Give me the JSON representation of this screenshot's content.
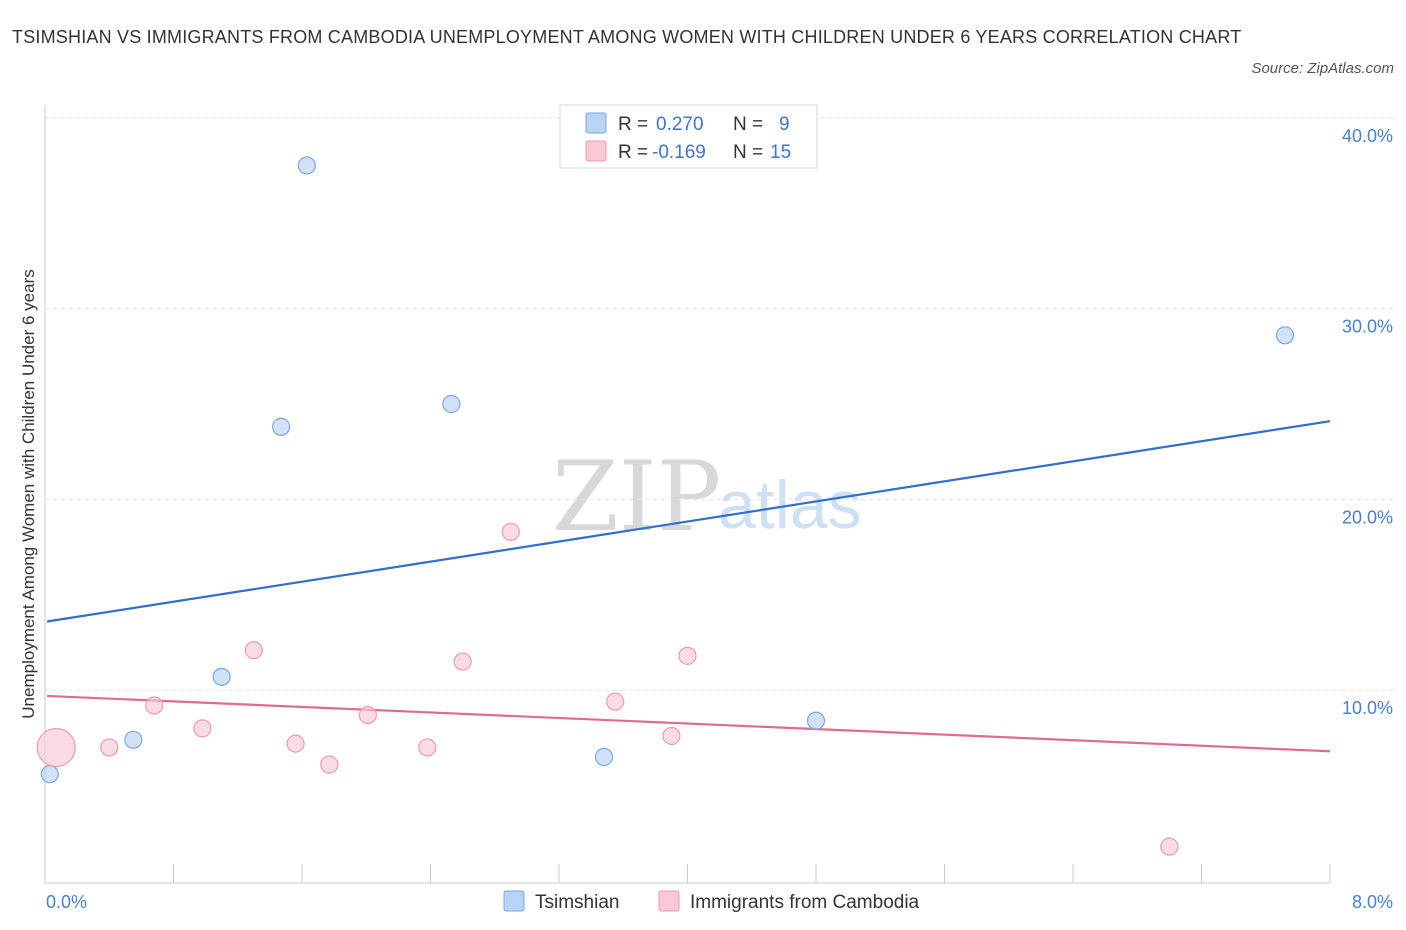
{
  "header": {
    "title": "TSIMSHIAN VS IMMIGRANTS FROM CAMBODIA UNEMPLOYMENT AMONG WOMEN WITH CHILDREN UNDER 6 YEARS CORRELATION CHART",
    "source": "Source: ZipAtlas.com"
  },
  "watermark": {
    "zip": "ZIP",
    "atlas": "atlas"
  },
  "colors": {
    "tsimshian_fill": "#b8d3f5",
    "tsimshian_stroke": "#7aa8e0",
    "tsimshian_line": "#2f6fcf",
    "cambodia_fill": "#f9c9d6",
    "cambodia_stroke": "#ec9ab2",
    "cambodia_line": "#e06a94"
  },
  "legend": {
    "rows": [
      {
        "r_label": "R =",
        "r_value": "0.270",
        "n_label": "N =",
        "n_value": "9"
      },
      {
        "r_label": "R =",
        "r_value": "-0.169",
        "n_label": "N =",
        "n_value": "15"
      }
    ]
  },
  "chart_data": {
    "type": "scatter",
    "title": "TSIMSHIAN VS IMMIGRANTS FROM CAMBODIA UNEMPLOYMENT AMONG WOMEN WITH CHILDREN UNDER 6 YEARS CORRELATION CHART",
    "xlabel": "",
    "ylabel": "Unemployment Among Women with Children Under 6 years",
    "xlim": [
      0,
      8
    ],
    "ylim": [
      0,
      40
    ],
    "x_tick_labels": [
      "0.0%",
      "8.0%"
    ],
    "y_ticks": [
      10,
      20,
      30,
      40
    ],
    "y_tick_labels": [
      "10.0%",
      "20.0%",
      "30.0%",
      "40.0%"
    ],
    "series": [
      {
        "name": "Tsimshian",
        "points": [
          {
            "x": 0.03,
            "y": 5.6
          },
          {
            "x": 0.55,
            "y": 7.4
          },
          {
            "x": 1.1,
            "y": 10.7
          },
          {
            "x": 1.47,
            "y": 23.8
          },
          {
            "x": 1.63,
            "y": 37.5
          },
          {
            "x": 2.53,
            "y": 25.0
          },
          {
            "x": 3.48,
            "y": 6.5
          },
          {
            "x": 4.8,
            "y": 8.4
          },
          {
            "x": 7.72,
            "y": 28.6
          }
        ],
        "trend": {
          "x": [
            0,
            8
          ],
          "y": [
            13.6,
            24.1
          ]
        }
      },
      {
        "name": "Immigrants from Cambodia",
        "points": [
          {
            "x": 0.07,
            "y": 7.0,
            "size": "large"
          },
          {
            "x": 0.4,
            "y": 7.0
          },
          {
            "x": 0.68,
            "y": 9.2
          },
          {
            "x": 0.98,
            "y": 8.0
          },
          {
            "x": 1.3,
            "y": 12.1
          },
          {
            "x": 1.56,
            "y": 7.2
          },
          {
            "x": 1.77,
            "y": 6.1
          },
          {
            "x": 2.01,
            "y": 8.7
          },
          {
            "x": 2.38,
            "y": 7.0
          },
          {
            "x": 2.6,
            "y": 11.5
          },
          {
            "x": 2.9,
            "y": 18.3
          },
          {
            "x": 3.55,
            "y": 9.4
          },
          {
            "x": 3.9,
            "y": 7.6
          },
          {
            "x": 4.0,
            "y": 11.8
          },
          {
            "x": 7.0,
            "y": 1.8
          }
        ],
        "trend": {
          "x": [
            0,
            8
          ],
          "y": [
            9.7,
            6.8
          ]
        }
      }
    ],
    "legend_entries": [
      "Tsimshian",
      "Immigrants from Cambodia"
    ],
    "legend_position": "bottom-center"
  }
}
